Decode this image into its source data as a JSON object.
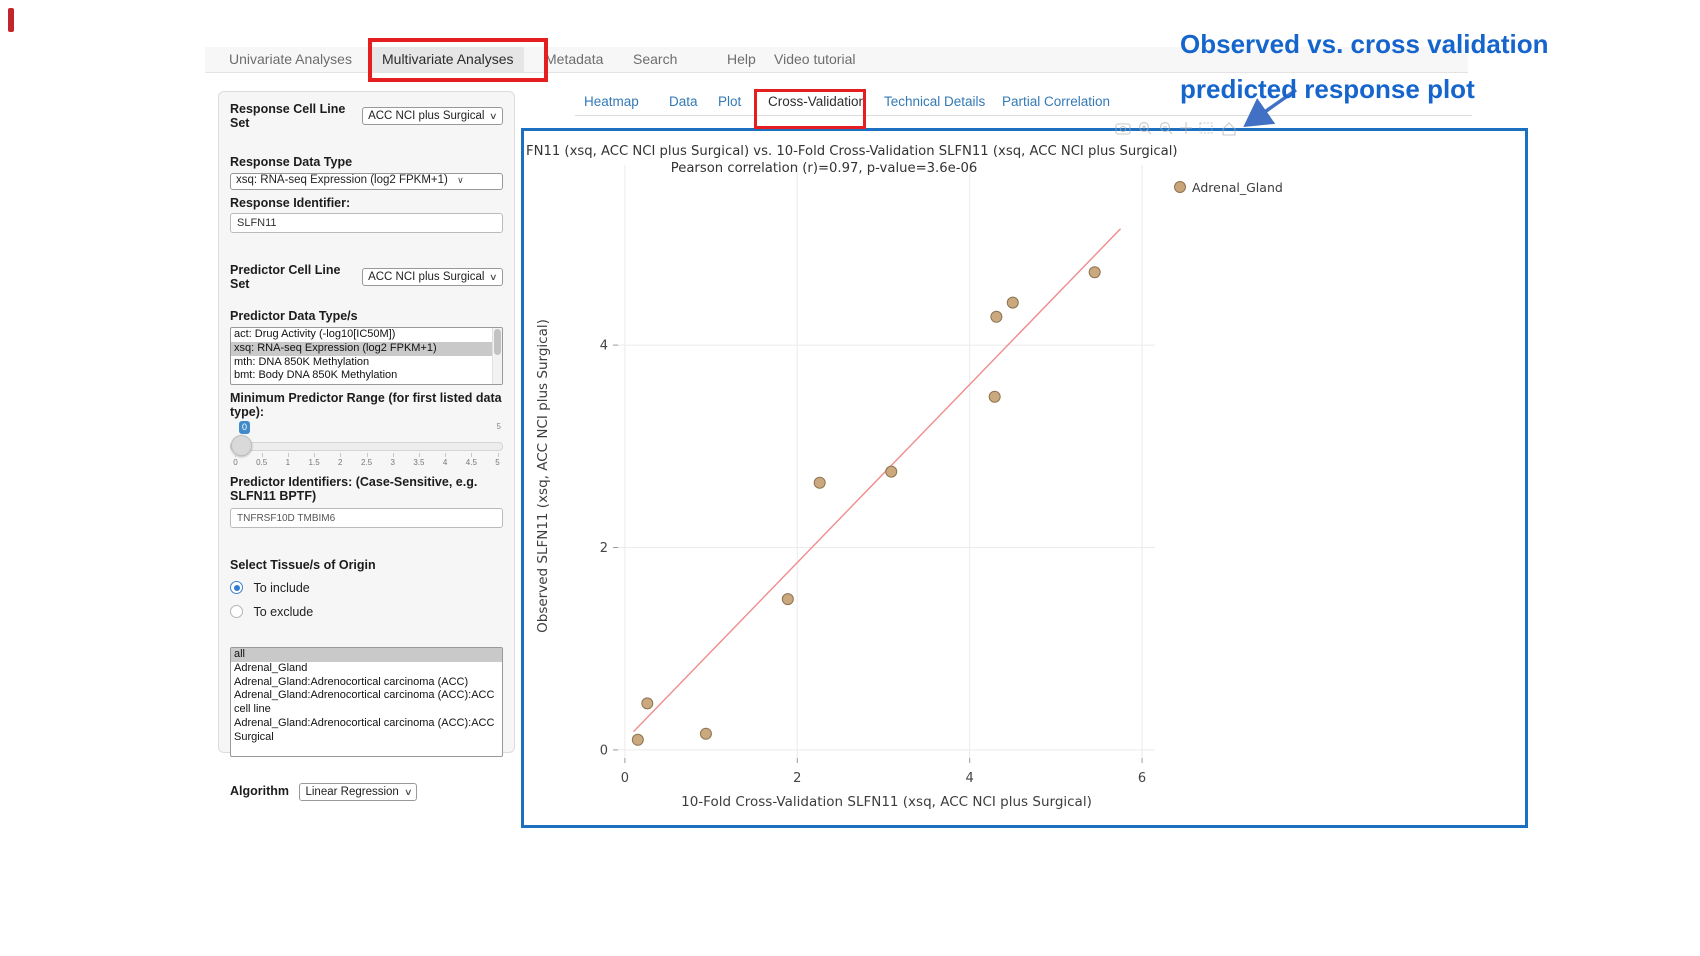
{
  "nav": {
    "items": [
      "Univariate Analyses",
      "Multivariate Analyses",
      "Metadata",
      "Search",
      "Help",
      "Video tutorial"
    ],
    "active": "Multivariate Analyses"
  },
  "annotation": {
    "line1": "Observed vs. cross validation",
    "line2": "predicted response plot",
    "color": "#1565cd"
  },
  "sidebar": {
    "response_cell_line_set_label": "Response Cell Line Set",
    "response_cell_line_set_value": "ACC NCI plus Surgical",
    "response_data_type_label": "Response Data Type",
    "response_data_type_value": "xsq: RNA-seq Expression (log2 FPKM+1)",
    "response_identifier_label": "Response Identifier:",
    "response_identifier_value": "SLFN11",
    "predictor_cell_line_set_label": "Predictor Cell Line Set",
    "predictor_cell_line_set_value": "ACC NCI plus Surgical",
    "predictor_data_types_label": "Predictor Data Type/s",
    "predictor_data_types_options": [
      "act: Drug Activity (-log10[IC50M])",
      "xsq: RNA-seq Expression (log2 FPKM+1)",
      "mth: DNA 850K Methylation",
      "bmt: Body DNA 850K Methylation"
    ],
    "predictor_data_types_selected": "xsq: RNA-seq Expression (log2 FPKM+1)",
    "min_range_label": "Minimum Predictor Range (for first listed data type):",
    "min_range_value": "0",
    "min_range_max": "5",
    "min_range_ticks": [
      "0",
      "0.5",
      "1",
      "1.5",
      "2",
      "2.5",
      "3",
      "3.5",
      "4",
      "4.5",
      "5"
    ],
    "predictor_identifiers_label": "Predictor Identifiers: (Case-Sensitive, e.g. SLFN11 BPTF)",
    "predictor_identifiers_value": "TNFRSF10D TMBIM6",
    "tissue_label": "Select Tissue/s of Origin",
    "tissue_radio_include": "To include",
    "tissue_radio_exclude": "To exclude",
    "tissue_radio_selected": "To include",
    "tissue_options": [
      "all",
      "Adrenal_Gland",
      "Adrenal_Gland:Adrenocortical carcinoma (ACC)",
      "Adrenal_Gland:Adrenocortical carcinoma (ACC):ACC cell line",
      "Adrenal_Gland:Adrenocortical carcinoma (ACC):ACC Surgical"
    ],
    "tissue_selected": "all",
    "algorithm_label": "Algorithm",
    "algorithm_value": "Linear Regression"
  },
  "tabs": {
    "items": [
      "Heatmap",
      "Data",
      "Plot",
      "Cross-Validation",
      "Technical Details",
      "Partial Correlation"
    ],
    "active": "Cross-Validation"
  },
  "chart_data": {
    "type": "scatter",
    "title": "FN11 (xsq, ACC NCI plus Surgical) vs. 10-Fold Cross-Validation SLFN11 (xsq, ACC NCI plus Surgical)",
    "subtitle": "Pearson correlation (r)=0.97, p-value=3.6e-06",
    "xlabel": "10-Fold Cross-Validation SLFN11 (xsq, ACC NCI plus Surgical)",
    "ylabel": "Observed SLFN11 (xsq, ACC NCI plus Surgical)",
    "xlim": [
      -0.08,
      6.15
    ],
    "ylim": [
      -0.08,
      5.78
    ],
    "xticks": [
      0,
      2,
      4,
      6
    ],
    "yticks": [
      0,
      2,
      4
    ],
    "grid": true,
    "legend": [
      {
        "label": "Adrenal_Gland",
        "color": "#c8a478"
      }
    ],
    "series": [
      {
        "name": "Adrenal_Gland",
        "points": [
          [
            0.15,
            0.1
          ],
          [
            0.26,
            0.46
          ],
          [
            0.94,
            0.16
          ],
          [
            1.89,
            1.49
          ],
          [
            2.26,
            2.64
          ],
          [
            3.09,
            2.75
          ],
          [
            4.29,
            3.49
          ],
          [
            4.31,
            4.28
          ],
          [
            4.5,
            4.42
          ],
          [
            5.45,
            4.72
          ]
        ]
      }
    ],
    "regression_line": {
      "x1": 0.1,
      "y1": 0.18,
      "x2": 5.75,
      "y2": 5.15,
      "color": "#f08c8c"
    }
  },
  "colors": {
    "highlight_red": "#e51f1f",
    "panel_border_blue": "#1d6fc0",
    "marker": "#c8a478",
    "marker_edge": "#8c7350",
    "link_blue": "#337ab7",
    "annotation_blue": "#1565cd"
  }
}
